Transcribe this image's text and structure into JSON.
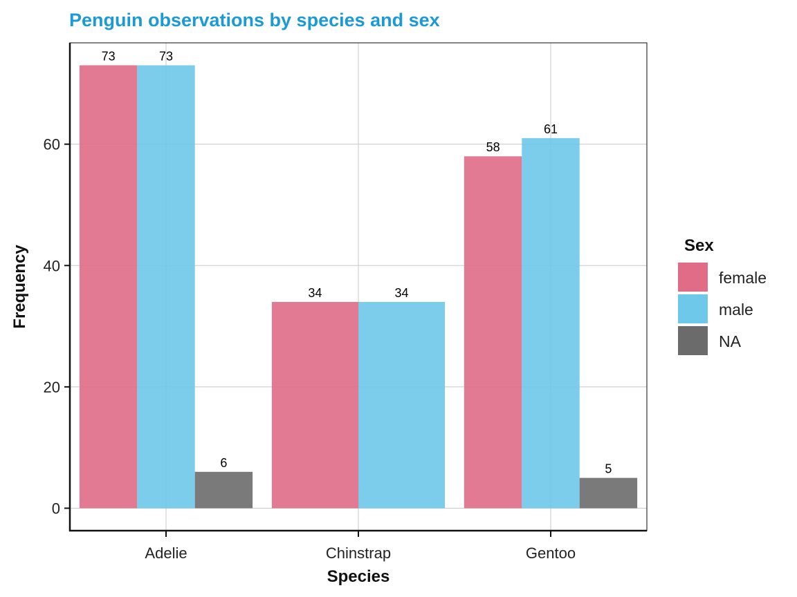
{
  "chart_data": {
    "type": "bar",
    "title": "Penguin observations by species and sex",
    "xlabel": "Species",
    "ylabel": "Frequency",
    "categories": [
      "Adelie",
      "Chinstrap",
      "Gentoo"
    ],
    "ylim": [
      -3.7,
      76.7
    ],
    "yticks": [
      0,
      20,
      40,
      60
    ],
    "ytick_labels": [
      "0",
      "20",
      "40",
      "60"
    ],
    "grid": true,
    "legend": {
      "title": "Sex",
      "position": "right"
    },
    "series": [
      {
        "name": "female",
        "color": "#E06C88",
        "values": [
          73,
          34,
          58
        ]
      },
      {
        "name": "male",
        "color": "#6DC8E9",
        "values": [
          73,
          34,
          61
        ]
      },
      {
        "name": "NA",
        "color": "#6B6B6B",
        "values": [
          6,
          null,
          5
        ]
      }
    ],
    "title_color": "#1B9AD6"
  }
}
